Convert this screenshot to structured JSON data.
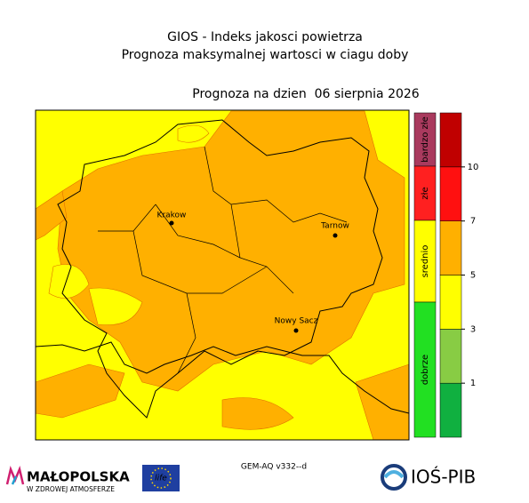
{
  "header": {
    "title": "GIOS - Indeks jakosci powietrza",
    "subtitle": "Prognoza maksymalnej wartosci w ciagu doby",
    "date_line": "Prognoza na dzien  06 sierpnia 2026"
  },
  "cities": [
    "Krakow",
    "Tarnow",
    "Nowy Sacz"
  ],
  "categories": [
    {
      "label": "bardzo złe",
      "color": "#a93a5e"
    },
    {
      "label": "złe",
      "color": "#ff2020"
    },
    {
      "label": "srednio",
      "color": "#ffff00"
    },
    {
      "label": "dobrze",
      "color": "#22e022"
    }
  ],
  "colorbar": {
    "colors": [
      "#10b040",
      "#88cc44",
      "#ffff00",
      "#ffb000",
      "#ff1010",
      "#c00000"
    ],
    "ticks": [
      1,
      3,
      5,
      7,
      10
    ]
  },
  "footer": {
    "model": "GEM-AQ v332--d",
    "malopolska": "MAŁOPOLSKA",
    "malopolska_tagline": "W ZDROWEJ ATMOSFERZE",
    "eu_logo": "life",
    "ios": "IOŚ-PIB"
  }
}
